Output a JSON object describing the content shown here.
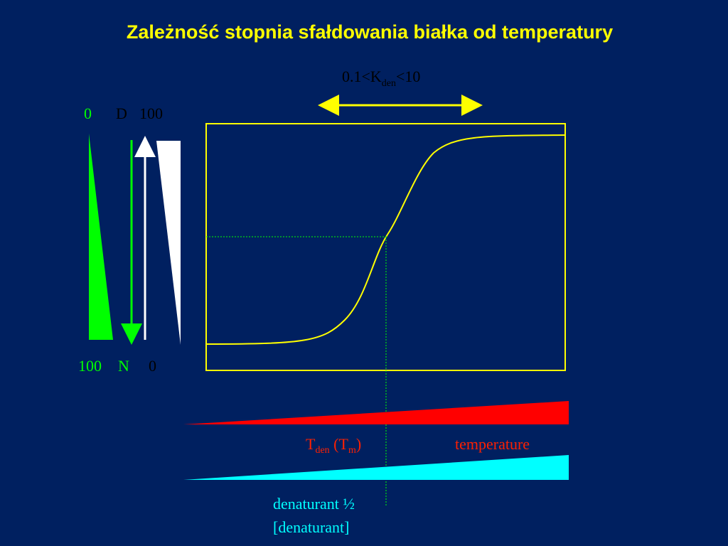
{
  "title": "Zależność stopnia sfałdowania białka od temperatury",
  "k_range": {
    "prefix": "0.1<K",
    "sub": "den",
    "suffix": "<10"
  },
  "left_scale": {
    "top_green": "0",
    "top_D": "D",
    "top_white": "100",
    "bottom_green": "100",
    "bottom_N": "N",
    "bottom_white": "0"
  },
  "tden": {
    "main": "T",
    "sub": "den",
    "paren_open": " (T",
    "paren_sub": "m",
    "paren_close": ")"
  },
  "temperature_label": "temperature",
  "denaturant_half": "denaturant ½",
  "denaturant_label": "[denaturant]",
  "colors": {
    "background": "#002060",
    "title": "#ffff00",
    "curve": "#ffff00",
    "green": "#00ff00",
    "white": "#ffffff",
    "red": "#ff0000",
    "cyan": "#00ffff",
    "dark_text": "#000000"
  }
}
